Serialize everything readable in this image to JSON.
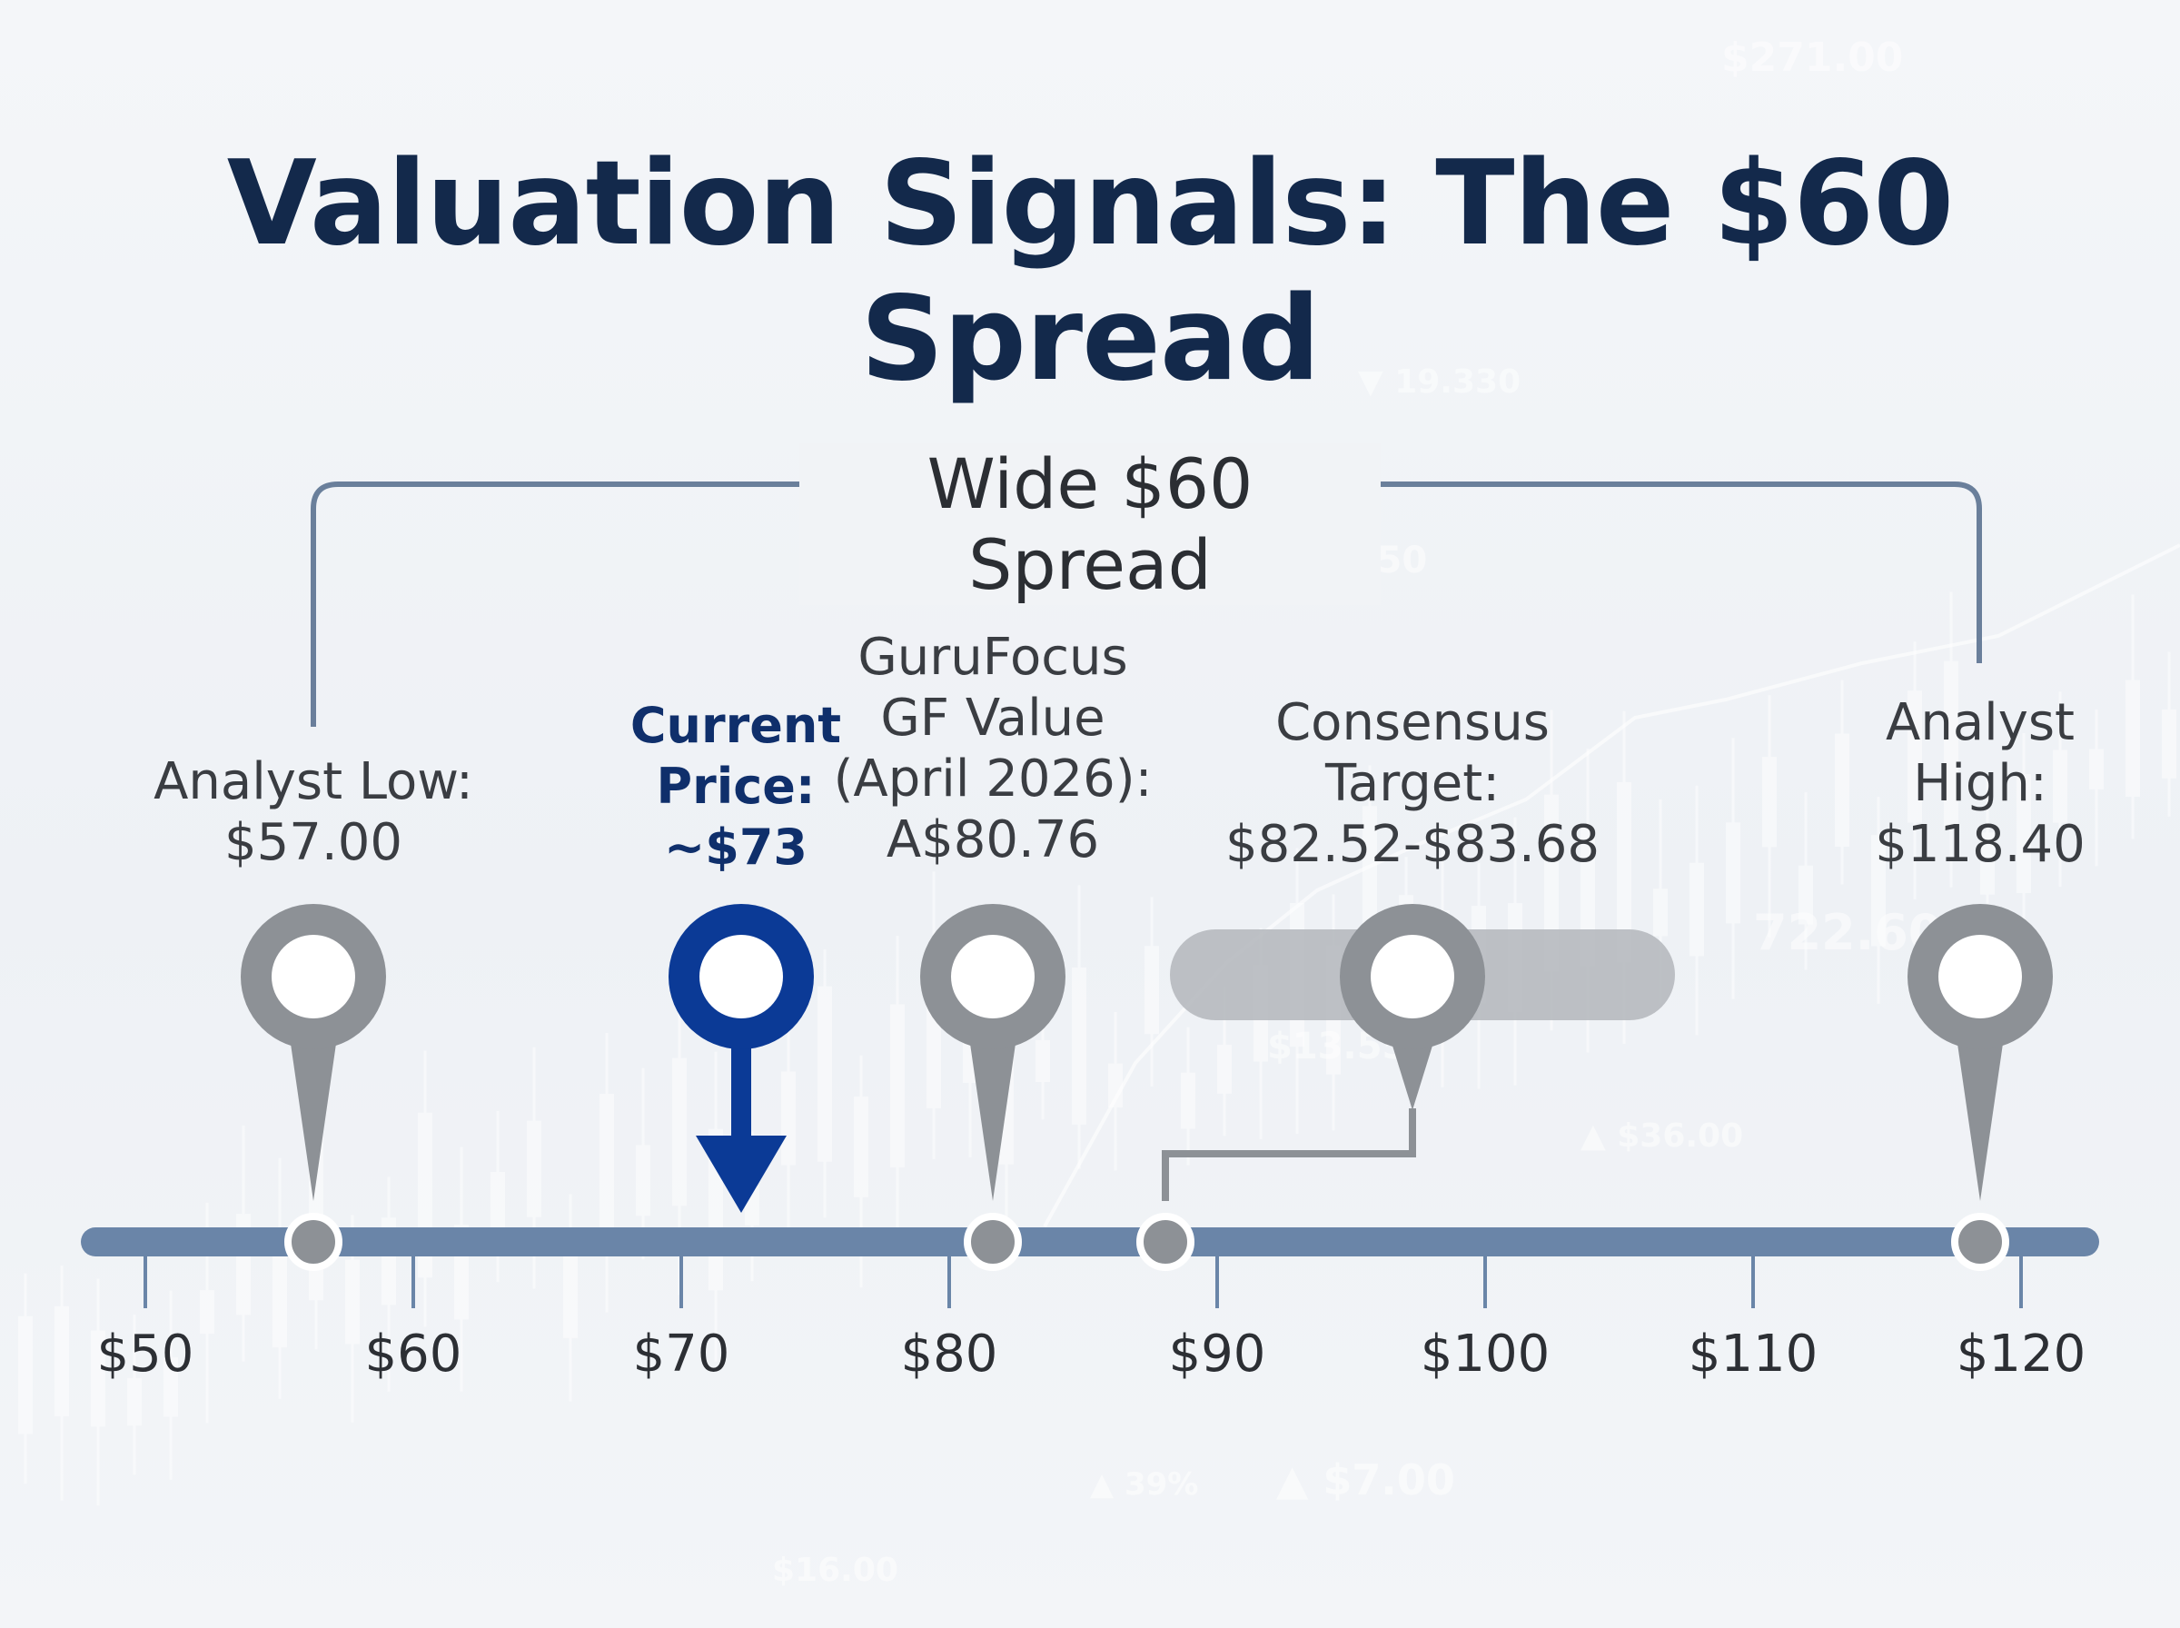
{
  "title": "Valuation Signals: The $60 Spread",
  "spread_label": "Wide $60 Spread",
  "colors": {
    "title": "#13294b",
    "axis": "#6a85a8",
    "marker_gray": "#8d9196",
    "marker_current": "#0b3a96",
    "range_bar": "#b3b6bb"
  },
  "markers": {
    "analyst_low": {
      "lines": [
        "Analyst Low:",
        "$57.00"
      ],
      "value": 57.0
    },
    "current_price": {
      "lines": [
        "Current",
        "Price:",
        "~$73"
      ],
      "value": 73
    },
    "gf_value": {
      "lines": [
        "GuruFocus",
        "GF Value",
        "(April 2026):",
        "A$80.76"
      ],
      "value": 80.76
    },
    "consensus": {
      "lines": [
        "Consensus",
        "Target:",
        "$82.52-$83.68"
      ],
      "value_low": 82.52,
      "value_high": 83.68
    },
    "analyst_high": {
      "lines": [
        "Analyst",
        "High:",
        "$118.40"
      ],
      "value": 118.4
    }
  },
  "axis": {
    "ticks": [
      "$50",
      "$60",
      "$70",
      "$80",
      "$90",
      "$100",
      "$110",
      "$120"
    ]
  },
  "background_text": [
    "$271.00",
    "▼ 19.330",
    "▼ 10.50",
    "722.60",
    "$13.55",
    "▲ $36.00",
    "▲ 39%",
    "▲ $7.00",
    "$16.00"
  ]
}
